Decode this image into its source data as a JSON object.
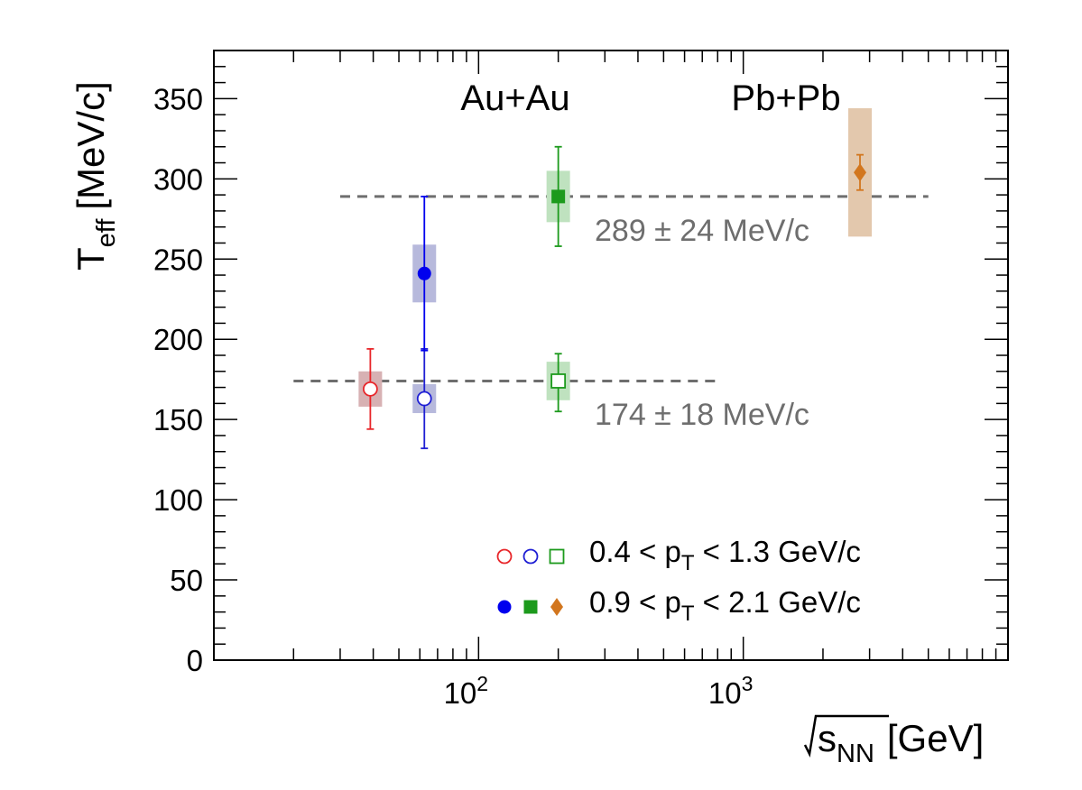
{
  "chart_data": {
    "type": "scatter",
    "xscale": "log",
    "xlim": [
      10,
      10000
    ],
    "ylim": [
      0,
      380
    ],
    "xlabel": "√s",
    "xlabel_sub": "NN",
    "xlabel_unit": "[GeV]",
    "ylabel": "T",
    "ylabel_sub": "eff",
    "ylabel_unit": "[MeV/c]",
    "x_ticks": [
      {
        "value": 100,
        "base": "10",
        "exp": "2"
      },
      {
        "value": 1000,
        "base": "10",
        "exp": "3"
      }
    ],
    "y_ticks": [
      "0",
      "50",
      "100",
      "150",
      "200",
      "250",
      "300",
      "350"
    ],
    "system_labels": [
      {
        "text": "Au+Au"
      },
      {
        "text": "Pb+Pb"
      }
    ],
    "fit_lines": [
      {
        "value": 289,
        "x_range": [
          30,
          5000
        ],
        "label": "289 ± 24 MeV/c"
      },
      {
        "value": 174,
        "x_range": [
          20,
          800
        ],
        "label": "174 ± 18 MeV/c"
      }
    ],
    "points": [
      {
        "x": 39,
        "y": 169,
        "err_low": 25,
        "err_high": 25,
        "sys": 11,
        "marker": "open-circle",
        "color": "#e8262a",
        "box": "#d7b1b3"
      },
      {
        "x": 62.4,
        "y": 163,
        "err_low": 31,
        "err_high": 31,
        "sys": 9,
        "marker": "open-circle",
        "color": "#1f1fd4",
        "box": "#b7b9dc"
      },
      {
        "x": 200,
        "y": 174,
        "err_low": 19,
        "err_high": 17,
        "sys": 12,
        "marker": "open-square",
        "color": "#1c9a1c",
        "box": "#bfe2bf"
      },
      {
        "x": 62.4,
        "y": 241,
        "err_low": 48,
        "err_high": 48,
        "sys": 18,
        "marker": "filled-circle",
        "color": "#0000ee",
        "box": "#b7b9dc"
      },
      {
        "x": 200,
        "y": 289,
        "err_low": 31,
        "err_high": 31,
        "sys": 16,
        "marker": "filled-square",
        "color": "#1c9a1c",
        "box": "#bfe2bf"
      },
      {
        "x": 2760,
        "y": 304,
        "err_low": 11,
        "err_high": 11,
        "sys": 40,
        "marker": "filled-diamond",
        "color": "#d2761e",
        "box": "#e3c8ad"
      }
    ],
    "legend": [
      {
        "text": "0.4 < p",
        "sub": "T",
        "tail": " < 1.3 GeV/c",
        "markers": [
          {
            "shape": "open-circle",
            "color": "#e8262a"
          },
          {
            "shape": "open-circle",
            "color": "#1f1fd4"
          },
          {
            "shape": "open-square",
            "color": "#1c9a1c"
          }
        ]
      },
      {
        "text": "0.9 < p",
        "sub": "T",
        "tail": " < 2.1 GeV/c",
        "markers": [
          {
            "shape": "filled-circle",
            "color": "#0000ee"
          },
          {
            "shape": "filled-square",
            "color": "#1c9a1c"
          },
          {
            "shape": "filled-diamond",
            "color": "#d2761e"
          }
        ]
      }
    ],
    "legend_position": "bottom-right",
    "grid": false
  }
}
